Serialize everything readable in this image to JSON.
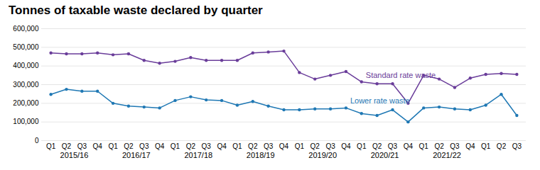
{
  "chart_data": {
    "type": "line",
    "title": "Tonnes of taxable waste declared by quarter",
    "categories": [
      "Q1",
      "Q2",
      "Q3",
      "Q4",
      "Q1",
      "Q2",
      "Q3",
      "Q4",
      "Q1",
      "Q2",
      "Q3",
      "Q4",
      "Q1",
      "Q2",
      "Q3",
      "Q4",
      "Q1",
      "Q2",
      "Q3",
      "Q4",
      "Q1",
      "Q2",
      "Q3",
      "Q4",
      "Q1",
      "Q2",
      "Q3",
      "Q4",
      "Q1",
      "Q2",
      "Q3"
    ],
    "year_labels": [
      "2015/16",
      "2016/17",
      "2017/18",
      "2018/19",
      "2019/20",
      "2020/21",
      "2021/22"
    ],
    "series": [
      {
        "name": "Standard rate waste",
        "color": "#6a3d9a",
        "marker": "circle",
        "values": [
          470000,
          465000,
          465000,
          470000,
          460000,
          465000,
          430000,
          415000,
          425000,
          445000,
          430000,
          430000,
          430000,
          470000,
          475000,
          480000,
          365000,
          330000,
          350000,
          370000,
          315000,
          305000,
          305000,
          200000,
          350000,
          330000,
          285000,
          335000,
          355000,
          360000,
          355000
        ]
      },
      {
        "name": "Lower rate waste",
        "color": "#1f78b4",
        "marker": "circle",
        "values": [
          248000,
          275000,
          265000,
          265000,
          200000,
          185000,
          180000,
          175000,
          215000,
          235000,
          218000,
          215000,
          190000,
          210000,
          185000,
          165000,
          165000,
          170000,
          170000,
          175000,
          145000,
          135000,
          165000,
          100000,
          175000,
          180000,
          170000,
          165000,
          190000,
          248000,
          135000
        ]
      }
    ],
    "ylim": [
      0,
      600000
    ],
    "yticks": [
      0,
      {
        "value": 100000,
        "label": "100,000"
      },
      {
        "value": 200000,
        "label": "200,000"
      },
      {
        "value": 300000,
        "label": "300,000"
      },
      {
        "value": 400000,
        "label": "400,000"
      },
      {
        "value": 500000,
        "label": "500,000"
      },
      {
        "value": 600000,
        "label": "600,000"
      }
    ],
    "grid": true
  }
}
